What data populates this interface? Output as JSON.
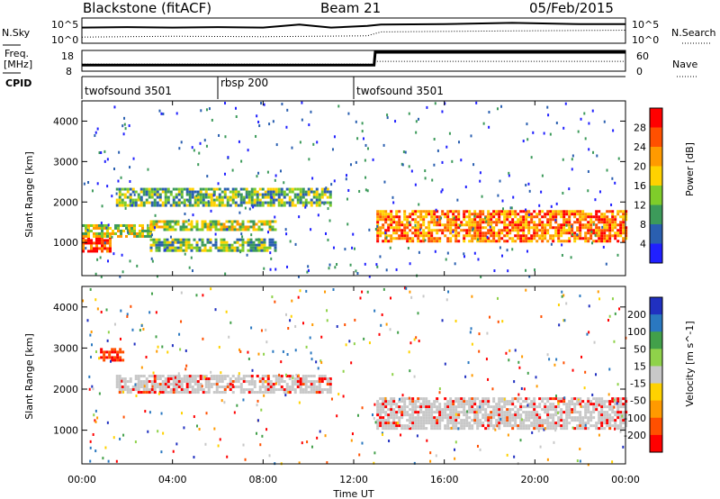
{
  "header": {
    "station": "Blackstone (fitACF)",
    "beam": "Beam 21",
    "date": "05/Feb/2015"
  },
  "side_labels": {
    "nsky": "N.Sky",
    "freq_top": "Freq.",
    "freq_unit": "[MHz]",
    "cpid": "CPID",
    "nsearch": "N.Search",
    "nave": "Nave"
  },
  "noise_panel": {
    "left_ticks": [
      "10^5",
      "10^0"
    ],
    "right_ticks": [
      "10^5",
      "10^0"
    ],
    "sky_level_series": [
      {
        "hour": 0,
        "level": 3.2
      },
      {
        "hour": 2,
        "level": 3.3
      },
      {
        "hour": 4,
        "level": 3.2
      },
      {
        "hour": 6,
        "level": 3.3
      },
      {
        "hour": 8,
        "level": 3.2
      },
      {
        "hour": 9.6,
        "level": 3.9
      },
      {
        "hour": 11,
        "level": 3.2
      },
      {
        "hour": 12.6,
        "level": 3.6
      },
      {
        "hour": 13.2,
        "level": 3.9
      },
      {
        "hour": 16,
        "level": 4.0
      },
      {
        "hour": 19,
        "level": 4.3
      },
      {
        "hour": 22,
        "level": 4.0
      },
      {
        "hour": 24,
        "level": 4.0
      }
    ],
    "search_level_series": [
      {
        "hour": 0,
        "level": 1.0
      },
      {
        "hour": 4,
        "level": 1.2
      },
      {
        "hour": 8,
        "level": 1.1
      },
      {
        "hour": 12.6,
        "level": 1.3
      },
      {
        "hour": 13.2,
        "level": 2.2
      },
      {
        "hour": 18,
        "level": 2.4
      },
      {
        "hour": 24,
        "level": 2.6
      }
    ]
  },
  "freq_panel": {
    "left_ticks": [
      "18",
      "8"
    ],
    "right_ticks": [
      "60",
      "0"
    ],
    "freq_mhz_series": [
      {
        "hour": 0,
        "value": 10.5
      },
      {
        "hour": 12.9,
        "value": 10.5
      },
      {
        "hour": 12.95,
        "value": 18.0
      },
      {
        "hour": 24,
        "value": 18.0
      }
    ],
    "nave_series": [
      {
        "hour": 0,
        "value": 18
      },
      {
        "hour": 12.9,
        "value": 18
      },
      {
        "hour": 12.95,
        "value": 28
      },
      {
        "hour": 24,
        "value": 28
      }
    ]
  },
  "cpid_panel": {
    "segments": [
      {
        "label": "twofsound 3501",
        "start": 0,
        "end": 6
      },
      {
        "label": "rbsp 200",
        "start": 6,
        "end": 12
      },
      {
        "label": "twofsound 3501",
        "start": 12,
        "end": 24
      }
    ]
  },
  "chart_data": [
    {
      "type": "heatmap",
      "title": "",
      "ylabel": "Slant Range [km]",
      "xlabel": "",
      "xlim": [
        0,
        24
      ],
      "ylim": [
        180,
        4500
      ],
      "yticks": [
        1000,
        2000,
        3000,
        4000
      ],
      "colorbar": {
        "label": "Power [dB]",
        "ticks": [
          "28",
          "24",
          "20",
          "16",
          "12",
          "8",
          "4"
        ],
        "colors": [
          "#ff0000",
          "#ff5000",
          "#ff9a00",
          "#ffd200",
          "#7fcd2a",
          "#3c9a5a",
          "#2a5fb0",
          "#2020ff"
        ]
      },
      "bands": [
        {
          "range_km": [
            800,
            1150
          ],
          "hours": [
            0,
            1.2
          ],
          "value_db": 26
        },
        {
          "range_km": [
            1150,
            1450
          ],
          "hours": [
            0,
            3
          ],
          "value_db": 14
        },
        {
          "range_km": [
            1900,
            2350
          ],
          "hours": [
            1.5,
            11
          ],
          "value_db": 10
        },
        {
          "range_km": [
            1300,
            1550
          ],
          "hours": [
            3,
            8.5
          ],
          "value_db": 12
        },
        {
          "range_km": [
            780,
            1100
          ],
          "hours": [
            3,
            8.5
          ],
          "value_db": 10
        },
        {
          "range_km": [
            1000,
            1800
          ],
          "hours": [
            13,
            24
          ],
          "value_db": 20
        }
      ]
    },
    {
      "type": "heatmap",
      "title": "",
      "ylabel": "Slant Range [km]",
      "xlabel": "Time UT",
      "xlim": [
        0,
        24
      ],
      "ylim": [
        180,
        4500
      ],
      "xticks": [
        "00:00",
        "04:00",
        "08:00",
        "12:00",
        "16:00",
        "20:00",
        "00:00"
      ],
      "yticks": [
        1000,
        2000,
        3000,
        4000
      ],
      "colorbar": {
        "label": "Velocity [m s^-1]",
        "ticks": [
          "200",
          "100",
          "50",
          "15",
          "-15",
          "-50",
          "-100",
          "-200"
        ],
        "colors": [
          "#2030c0",
          "#2a78c0",
          "#42a04a",
          "#8fd24a",
          "#c8c8c8",
          "#ffd200",
          "#ff9a00",
          "#ff5000",
          "#ff0000"
        ]
      },
      "bands": [
        {
          "range_km": [
            1900,
            2350
          ],
          "hours": [
            1.5,
            11
          ],
          "value_ms": 0
        },
        {
          "range_km": [
            1050,
            1800
          ],
          "hours": [
            13,
            24
          ],
          "value_ms": 0
        },
        {
          "range_km": [
            2700,
            3000
          ],
          "hours": [
            0.8,
            1.8
          ],
          "value_ms": -150
        }
      ]
    }
  ],
  "bottom_axis": {
    "xlabel": "Time UT",
    "ticks": [
      "00:00",
      "04:00",
      "08:00",
      "12:00",
      "16:00",
      "20:00",
      "00:00"
    ]
  }
}
